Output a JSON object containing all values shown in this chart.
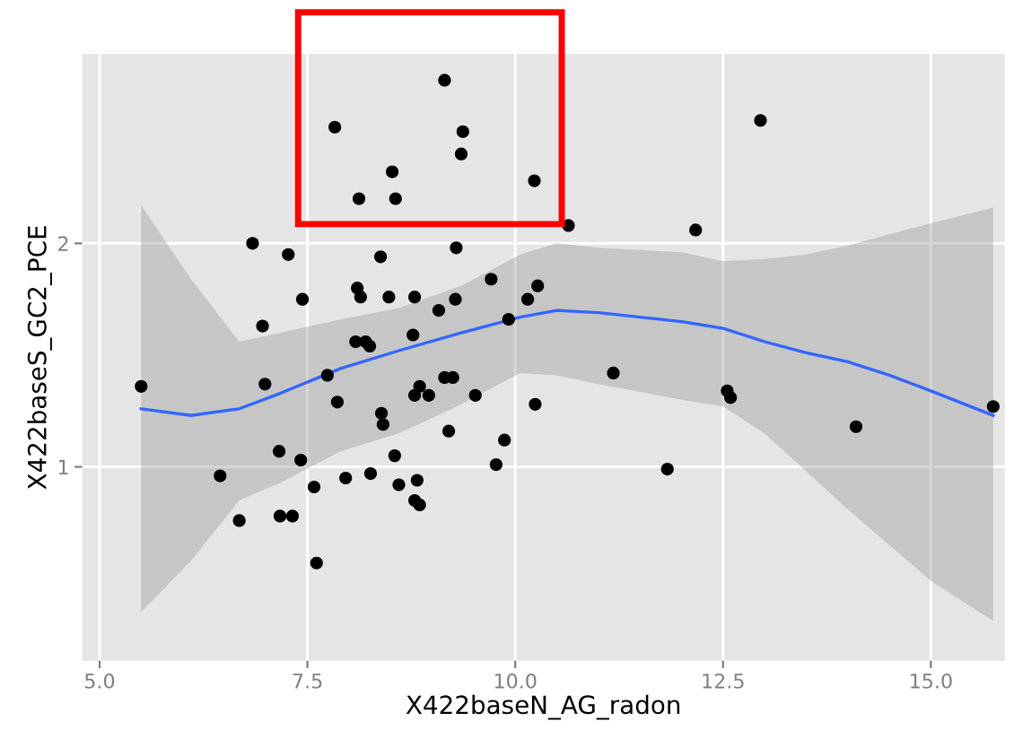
{
  "chart_data": {
    "type": "scatter",
    "xlabel": "X422baseN_AG_radon",
    "ylabel": "X422baseS_GC2_PCE",
    "xlim": [
      4.79,
      15.89
    ],
    "ylim": [
      0.133,
      2.847
    ],
    "xticks": [
      {
        "value": 5,
        "label": "5.0"
      },
      {
        "value": 7.5,
        "label": "7.5"
      },
      {
        "value": 10,
        "label": "10.0"
      },
      {
        "value": 12.5,
        "label": "12.5"
      },
      {
        "value": 15,
        "label": "15.0"
      }
    ],
    "yticks": [
      1,
      2
    ],
    "grid": true,
    "legend": false,
    "marker": "circle",
    "series": [
      {
        "color": "#000000",
        "x": [
          9.15,
          7.83,
          9.37,
          9.35,
          8.52,
          8.12,
          8.56,
          10.23,
          6.84,
          7.27,
          8.38,
          9.29,
          7.44,
          8.1,
          8.14,
          8.48,
          8.79,
          6.96,
          9.08,
          9.28,
          9.71,
          9.92,
          10.15,
          10.27,
          12.95,
          10.64,
          12.17,
          8.08,
          8.2,
          8.25,
          8.77,
          5.5,
          6.99,
          7.74,
          7.86,
          8.39,
          8.41,
          8.85,
          8.79,
          8.96,
          9.15,
          9.25,
          9.52,
          10.24,
          9.2,
          9.87,
          9.77,
          7.16,
          7.42,
          8.55,
          6.45,
          7.96,
          8.26,
          7.58,
          8.6,
          8.82,
          8.79,
          8.85,
          6.68,
          7.17,
          7.32,
          7.61,
          11.18,
          12.55,
          12.59,
          14.1,
          15.75,
          11.83
        ],
        "values": [
          2.73,
          2.52,
          2.5,
          2.4,
          2.32,
          2.2,
          2.2,
          2.28,
          2.0,
          1.95,
          1.94,
          1.98,
          1.75,
          1.8,
          1.76,
          1.76,
          1.76,
          1.63,
          1.7,
          1.75,
          1.84,
          1.66,
          1.75,
          1.81,
          2.55,
          2.08,
          2.06,
          1.56,
          1.56,
          1.54,
          1.59,
          1.36,
          1.37,
          1.41,
          1.29,
          1.24,
          1.19,
          1.36,
          1.32,
          1.32,
          1.4,
          1.4,
          1.32,
          1.28,
          1.16,
          1.12,
          1.01,
          1.07,
          1.03,
          1.05,
          0.96,
          0.95,
          0.97,
          0.91,
          0.92,
          0.94,
          0.85,
          0.83,
          0.76,
          0.78,
          0.78,
          0.57,
          1.42,
          1.34,
          1.31,
          1.18,
          1.27,
          0.99
        ]
      },
      {
        "type": "line",
        "color": "#3366ff",
        "marker": "none",
        "x": [
          5.5,
          6.1,
          6.68,
          7.18,
          7.9,
          8.6,
          9.35,
          10.06,
          10.5,
          11.0,
          12.0,
          12.5,
          13.0,
          13.5,
          14.0,
          14.5,
          15.0,
          15.75
        ],
        "values": [
          1.26,
          1.23,
          1.26,
          1.33,
          1.44,
          1.52,
          1.6,
          1.67,
          1.7,
          1.69,
          1.65,
          1.62,
          1.56,
          1.51,
          1.47,
          1.41,
          1.34,
          1.23
        ],
        "upper": [
          2.17,
          1.84,
          1.56,
          1.6,
          1.66,
          1.71,
          1.81,
          1.95,
          2.0,
          1.98,
          1.96,
          1.92,
          1.93,
          1.95,
          1.99,
          2.04,
          2.09,
          2.16
        ],
        "lower": [
          0.35,
          0.58,
          0.85,
          0.93,
          1.07,
          1.15,
          1.28,
          1.42,
          1.41,
          1.37,
          1.3,
          1.27,
          1.15,
          0.98,
          0.81,
          0.65,
          0.49,
          0.31
        ]
      }
    ]
  }
}
